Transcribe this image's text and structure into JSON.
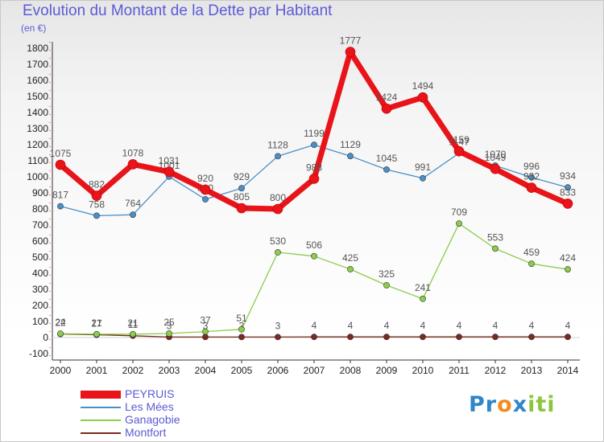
{
  "title": "Evolution du Montant de la Dette par Habitant",
  "unit_label": "(en €)",
  "logo_letters": [
    {
      "ch": "P",
      "color": "#2f86c9"
    },
    {
      "ch": "r",
      "color": "#2f86c9"
    },
    {
      "ch": "o",
      "color": "#f28c1f"
    },
    {
      "ch": "x",
      "color": "#2f86c9"
    },
    {
      "ch": "i",
      "color": "#8cc63f"
    },
    {
      "ch": "t",
      "color": "#8cc63f"
    },
    {
      "ch": "i",
      "color": "#8cc63f"
    }
  ],
  "chart_data": {
    "type": "line",
    "title": "Evolution du Montant de la Dette par Habitant",
    "ylabel": "(en €)",
    "x": [
      "2000",
      "2001",
      "2002",
      "2003",
      "2004",
      "2005",
      "2006",
      "2007",
      "2008",
      "2009",
      "2010",
      "2011",
      "2012",
      "2013",
      "2014"
    ],
    "ylim": [
      -100,
      1800
    ],
    "yticks": [
      -100,
      0,
      100,
      200,
      300,
      400,
      500,
      600,
      700,
      800,
      900,
      1000,
      1100,
      1200,
      1300,
      1400,
      1500,
      1600,
      1700,
      1800
    ],
    "grid": false,
    "legend_position": "bottom-left",
    "series": [
      {
        "name": "PEYRUIS",
        "color": "#e8141a",
        "values": [
          1075,
          882,
          1078,
          1031,
          920,
          805,
          800,
          988,
          1777,
          1424,
          1494,
          1159,
          1049,
          932,
          833
        ],
        "labels": [
          "1075",
          "882",
          "1078",
          "1031",
          "920",
          "805",
          "800",
          "988",
          "1777",
          "1424",
          "1494",
          "1159",
          "1049",
          "932",
          "833"
        ]
      },
      {
        "name": "Les Mées",
        "color": "#4a90c8",
        "values": [
          817,
          758,
          764,
          1001,
          860,
          929,
          1128,
          1199,
          1129,
          1045,
          991,
          1147,
          1070,
          996,
          934
        ],
        "labels": [
          "817",
          "758",
          "764",
          "1001",
          "860",
          "929",
          "1128",
          "1199",
          "1129",
          "1045",
          "991",
          "1147",
          "1070",
          "996",
          "934"
        ]
      },
      {
        "name": "Ganagobie",
        "color": "#8ccd4a",
        "values": [
          24,
          21,
          21,
          25,
          37,
          51,
          530,
          506,
          425,
          325,
          241,
          709,
          553,
          459,
          424
        ],
        "labels": [
          "24",
          "21",
          "21",
          "25",
          "37",
          "51",
          "530",
          "506",
          "425",
          "325",
          "241",
          "709",
          "553",
          "459",
          "424"
        ]
      },
      {
        "name": "Montfort",
        "color": "#7a2a1e",
        "values": [
          22,
          17,
          11,
          3,
          3,
          3,
          3,
          4,
          4,
          4,
          4,
          4,
          4,
          4,
          4
        ],
        "labels": [
          "22",
          "17",
          "11",
          "3",
          "3",
          "3",
          "3",
          "4",
          "4",
          "4",
          "4",
          "4",
          "4",
          "4",
          "4"
        ]
      }
    ]
  }
}
